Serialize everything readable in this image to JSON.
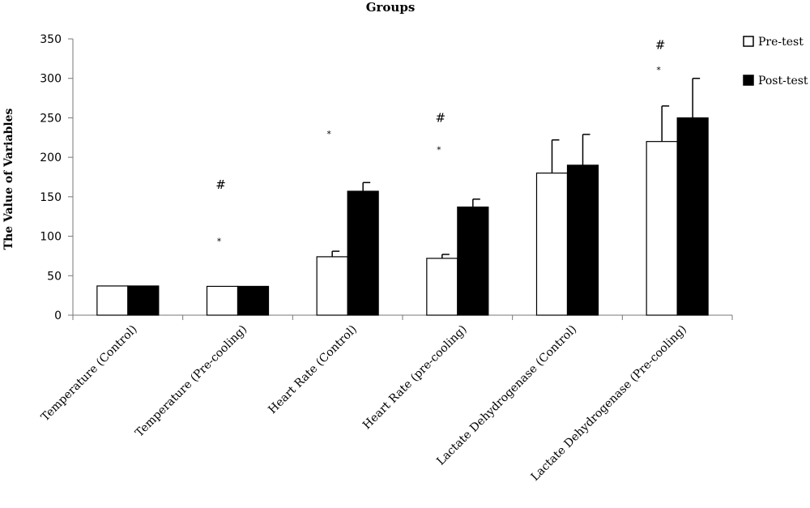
{
  "chart_data": {
    "type": "bar",
    "title": "Groups",
    "ylabel": "The Value of Variables",
    "xlabel": "",
    "ylim": [
      0,
      350
    ],
    "yticks": [
      0,
      50,
      100,
      150,
      200,
      250,
      300,
      350
    ],
    "grid": false,
    "legend_position": "top-right",
    "categories": [
      "Temperature (Control)",
      "Temperature (Pre-cooling)",
      "Heart Rate (Control)",
      "Heart Rate (pre-cooling)",
      "Lactate Dehydrogenase (Control)",
      "Lactate Dehydrogenase (Pre-cooling)"
    ],
    "series": [
      {
        "name": "Pre-test",
        "color": "#ffffff",
        "values": [
          37,
          36.5,
          74,
          72,
          180,
          220
        ],
        "error": [
          0.3,
          0.3,
          7,
          5,
          42,
          45
        ]
      },
      {
        "name": "Post-test",
        "color": "#000000",
        "values": [
          37,
          36.5,
          157,
          137,
          190,
          250
        ],
        "error": [
          0.3,
          0.3,
          11,
          10,
          39,
          50
        ]
      }
    ],
    "annotations": [
      {
        "category_index": 1,
        "series_index": 0,
        "text": "*",
        "y": 90
      },
      {
        "category_index": 1,
        "series_index": 0,
        "text": "#",
        "y": 160
      },
      {
        "category_index": 2,
        "series_index": 0,
        "text": "*",
        "y": 226
      },
      {
        "category_index": 3,
        "series_index": 0,
        "text": "*",
        "y": 206
      },
      {
        "category_index": 3,
        "series_index": 0,
        "text": "#",
        "y": 245
      },
      {
        "category_index": 5,
        "series_index": 0,
        "text": "*",
        "y": 307
      },
      {
        "category_index": 5,
        "series_index": 0,
        "text": "#",
        "y": 337
      }
    ]
  }
}
